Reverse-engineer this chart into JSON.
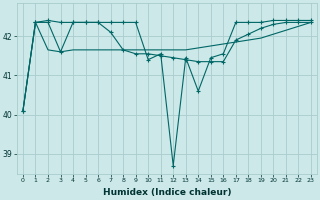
{
  "xlabel": "Humidex (Indice chaleur)",
  "background_color": "#cce8e8",
  "grid_color": "#aacccc",
  "line_color": "#006666",
  "xlim": [
    -0.5,
    23.5
  ],
  "ylim": [
    38.5,
    42.85
  ],
  "yticks": [
    39,
    40,
    41,
    42
  ],
  "xtick_labels": [
    "0",
    "1",
    "2",
    "3",
    "4",
    "5",
    "6",
    "7",
    "8",
    "9",
    "10",
    "11",
    "12",
    "13",
    "14",
    "15",
    "16",
    "17",
    "18",
    "19",
    "20",
    "21",
    "22",
    "23"
  ],
  "series1_x": [
    0,
    1,
    2,
    3,
    4,
    5,
    6,
    7,
    8,
    9,
    10,
    11,
    12,
    13,
    14,
    15,
    16,
    17,
    18,
    19,
    20,
    21,
    22,
    23
  ],
  "series1_y": [
    40.1,
    42.35,
    42.4,
    42.35,
    42.35,
    42.35,
    42.35,
    42.35,
    42.35,
    42.35,
    41.4,
    41.55,
    38.7,
    41.45,
    40.6,
    41.45,
    41.55,
    42.35,
    42.35,
    42.35,
    42.4,
    42.4,
    42.4,
    42.4
  ],
  "series2_x": [
    0,
    1,
    2,
    3,
    4,
    5,
    6,
    7,
    8,
    9,
    10,
    11,
    12,
    13,
    14,
    15,
    16,
    17,
    18,
    19,
    20,
    21,
    22,
    23
  ],
  "series2_y": [
    40.1,
    42.35,
    42.35,
    41.6,
    42.35,
    42.35,
    42.35,
    42.1,
    41.65,
    41.55,
    41.55,
    41.5,
    41.45,
    41.4,
    41.35,
    41.35,
    41.35,
    41.9,
    42.05,
    42.2,
    42.3,
    42.35,
    42.35,
    42.35
  ],
  "series3_x": [
    0,
    1,
    2,
    3,
    4,
    5,
    6,
    7,
    8,
    9,
    10,
    11,
    12,
    13,
    14,
    15,
    16,
    17,
    18,
    19,
    20,
    21,
    22,
    23
  ],
  "series3_y": [
    40.1,
    42.35,
    41.65,
    41.6,
    41.65,
    41.65,
    41.65,
    41.65,
    41.65,
    41.65,
    41.65,
    41.65,
    41.65,
    41.65,
    41.7,
    41.75,
    41.8,
    41.85,
    41.9,
    41.95,
    42.05,
    42.15,
    42.25,
    42.35
  ]
}
